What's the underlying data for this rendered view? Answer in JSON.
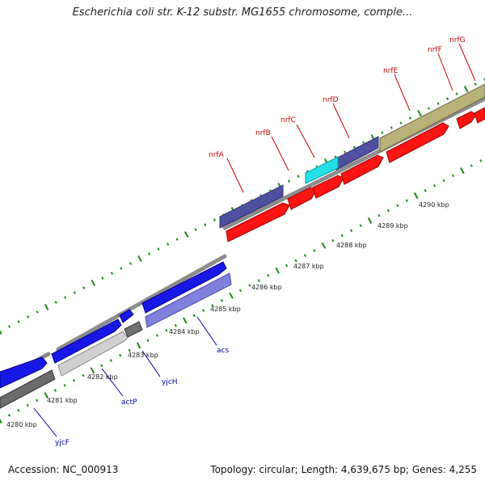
{
  "title": "Escherichia coli str. K-12 substr. MG1655 chromosome, comple...",
  "accession": "Accession: NC_000913",
  "summary": "Topology: circular; Length: 4,639,675 bp; Genes: 4,255",
  "colors": {
    "label_top": "#cc0000",
    "label_bottom": "#0000aa",
    "tick": "#1a8a1a",
    "backbone": "#8a8a8a"
  },
  "kbp_labels": [
    "4280 kbp",
    "4281 kbp",
    "4282 kbp",
    "4283 kbp",
    "4284 kbp",
    "4285 kbp",
    "4286 kbp",
    "4287 kbp",
    "4288 kbp",
    "4289 kbp",
    "4290 kbp"
  ],
  "genes_top": [
    {
      "name": "nrfA"
    },
    {
      "name": "nrfB"
    },
    {
      "name": "nrfC"
    },
    {
      "name": "nrfD"
    },
    {
      "name": "nrfE"
    },
    {
      "name": "nrfF"
    },
    {
      "name": "nrfG"
    }
  ],
  "genes_bottom": [
    {
      "name": "yjcF"
    },
    {
      "name": "actP"
    },
    {
      "name": "yjcH"
    },
    {
      "name": "acs"
    }
  ]
}
